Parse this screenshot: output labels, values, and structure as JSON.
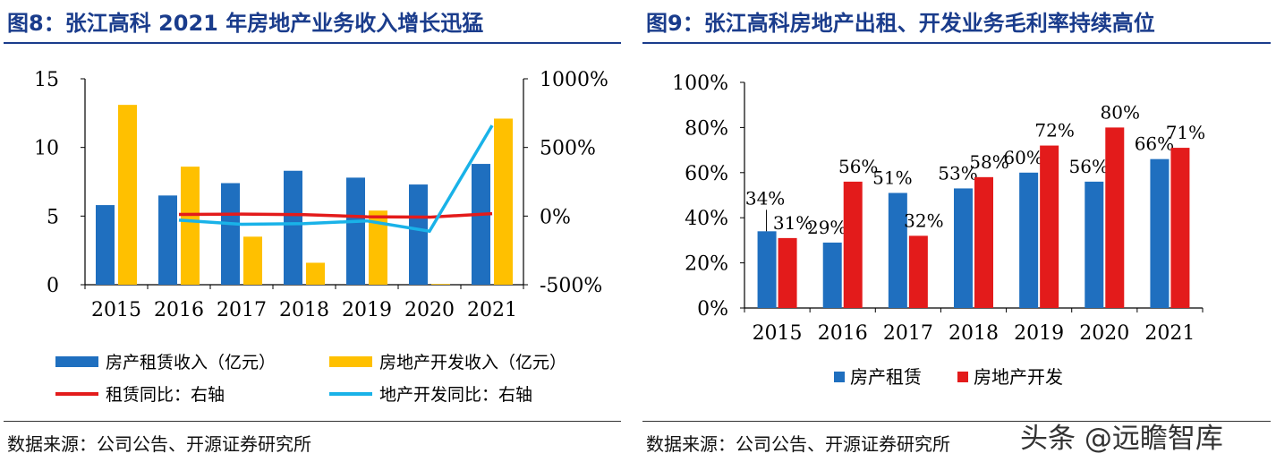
{
  "left": {
    "title": "图8：张江高科 2021 年房地产业务收入增长迅猛",
    "source": "数据来源：公司公告、开源证券研究所"
  },
  "right": {
    "title": "图9：张江高科房地产出租、开发业务毛利率持续高位",
    "source": "数据来源：公司公告、开源证券研究所"
  },
  "watermark": "头条 @远瞻智库",
  "colors": {
    "blue": "#1f6fbf",
    "gold": "#ffc000",
    "red": "#e31b1b",
    "light_blue": "#19b2e8",
    "title": "#1a3c8c"
  },
  "chart_data": [
    {
      "type": "bar",
      "title": "张江高科 2021 年房地产业务收入增长迅猛",
      "categories": [
        "2015",
        "2016",
        "2017",
        "2018",
        "2019",
        "2020",
        "2021"
      ],
      "series": [
        {
          "name": "房产租赁收入（亿元）",
          "type": "bar",
          "axis": "left",
          "values": [
            5.8,
            6.5,
            7.4,
            8.3,
            7.8,
            7.3,
            8.8
          ]
        },
        {
          "name": "房地产开发收入（亿元）",
          "type": "bar",
          "axis": "left",
          "values": [
            13.1,
            8.6,
            3.5,
            1.6,
            5.4,
            0.05,
            12.1
          ]
        },
        {
          "name": "租赁同比：右轴",
          "type": "line",
          "axis": "right",
          "values": [
            null,
            12,
            14,
            10,
            -5,
            -8,
            18
          ]
        },
        {
          "name": "地产开发同比：右轴",
          "type": "line",
          "axis": "right",
          "values": [
            null,
            -30,
            -60,
            -55,
            -35,
            -110,
            660
          ]
        }
      ],
      "left_axis": {
        "ylim": [
          0,
          15
        ],
        "ticks": [
          "0",
          "5",
          "10",
          "15"
        ]
      },
      "right_axis": {
        "ylim": [
          -500,
          1000
        ],
        "ticks": [
          "-500%",
          "0%",
          "500%",
          "1000%"
        ]
      },
      "legend": [
        "房产租赁收入（亿元）",
        "房地产开发收入（亿元）",
        "租赁同比：右轴",
        "地产开发同比：右轴"
      ]
    },
    {
      "type": "bar",
      "title": "张江高科房地产出租、开发业务毛利率持续高位",
      "categories": [
        "2015",
        "2016",
        "2017",
        "2018",
        "2019",
        "2020",
        "2021"
      ],
      "series": [
        {
          "name": "房产租赁",
          "values": [
            34,
            29,
            51,
            53,
            60,
            56,
            66
          ],
          "labels": [
            "34%",
            "29%",
            "51%",
            "53%",
            "60%",
            "56%",
            "66%"
          ]
        },
        {
          "name": "房地产开发",
          "values": [
            31,
            56,
            32,
            58,
            72,
            80,
            71
          ],
          "labels": [
            "31%",
            "56%",
            "32%",
            "58%",
            "72%",
            "80%",
            "71%"
          ]
        }
      ],
      "ylim": [
        0,
        100
      ],
      "ticks": [
        "0%",
        "20%",
        "40%",
        "60%",
        "80%",
        "100%"
      ],
      "legend": [
        "房产租赁",
        "房地产开发"
      ]
    }
  ]
}
